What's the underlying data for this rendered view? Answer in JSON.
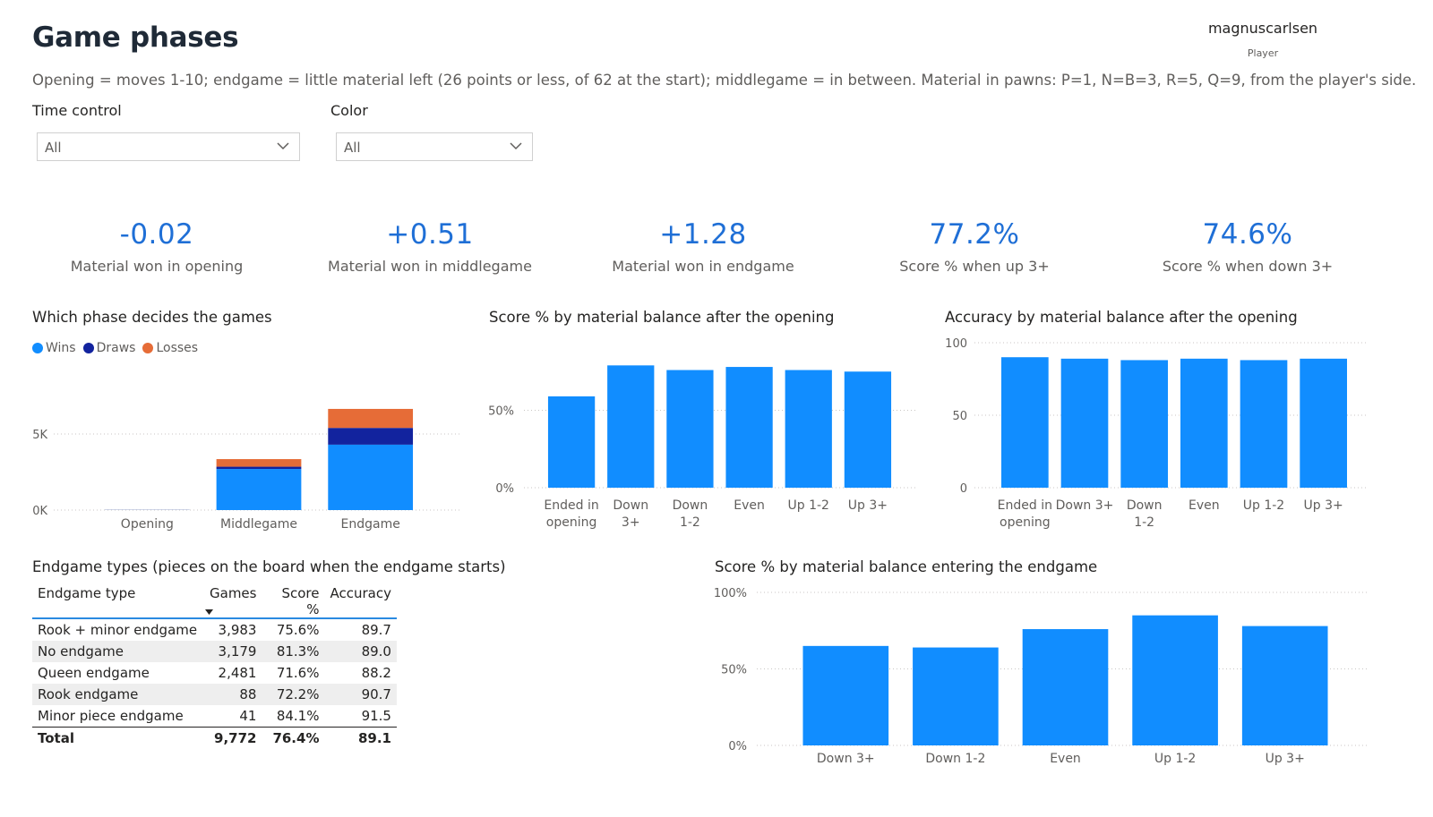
{
  "header": {
    "title": "Game phases",
    "player_name": "magnuscarlsen",
    "player_label": "Player",
    "subtitle": "Opening = moves 1-10; endgame = little material left (26 points or less, of 62 at the start); middlegame = in between. Material in pawns: P=1, N=B=3, R=5, Q=9, from the player's side."
  },
  "filters": {
    "time_control": {
      "label": "Time control",
      "value": "All"
    },
    "color": {
      "label": "Color",
      "value": "All"
    }
  },
  "kpis": [
    {
      "value": "-0.02",
      "label": "Material won in opening"
    },
    {
      "value": "+0.51",
      "label": "Material won in middlegame"
    },
    {
      "value": "+1.28",
      "label": "Material won in endgame"
    },
    {
      "value": "77.2%",
      "label": "Score % when up 3+"
    },
    {
      "value": "74.6%",
      "label": "Score % when down 3+"
    }
  ],
  "colors": {
    "wins": "#118dff",
    "draws": "#12239e",
    "losses": "#e66c37",
    "bar": "#118dff",
    "kpi": "#1f6fd6"
  },
  "phase_chart": {
    "title": "Which phase decides the games",
    "legend": [
      "Wins",
      "Draws",
      "Losses"
    ]
  },
  "endgame_table": {
    "title": "Endgame types (pieces on the board when the endgame starts)",
    "headers": [
      "Endgame type",
      "Games",
      "Score %",
      "Accuracy"
    ],
    "rows": [
      [
        "Rook + minor endgame",
        "3,983",
        "75.6%",
        "89.7"
      ],
      [
        "No endgame",
        "3,179",
        "81.3%",
        "89.0"
      ],
      [
        "Queen endgame",
        "2,481",
        "71.6%",
        "88.2"
      ],
      [
        "Rook endgame",
        "88",
        "72.2%",
        "90.7"
      ],
      [
        "Minor piece endgame",
        "41",
        "84.1%",
        "91.5"
      ]
    ],
    "total": [
      "Total",
      "9,772",
      "76.4%",
      "89.1"
    ]
  },
  "chart_data": [
    {
      "type": "bar",
      "stacked": true,
      "title": "Which phase decides the games",
      "categories": [
        "Opening",
        "Middlegame",
        "Endgame"
      ],
      "series": [
        {
          "name": "Wins",
          "values": [
            10,
            2700,
            4300
          ]
        },
        {
          "name": "Draws",
          "values": [
            5,
            150,
            1100
          ]
        },
        {
          "name": "Losses",
          "values": [
            5,
            500,
            1250
          ]
        }
      ],
      "y_ticks": [
        "0K",
        "5K"
      ],
      "y_tick_values": [
        0,
        5000
      ],
      "ylim": [
        0,
        10000
      ],
      "legend_position": "top-left",
      "grid": true
    },
    {
      "type": "bar",
      "title": "Score % by material balance after the opening",
      "categories": [
        [
          "Ended in",
          "opening"
        ],
        [
          "Down",
          "3+"
        ],
        [
          "Down",
          "1-2"
        ],
        [
          "Even"
        ],
        [
          "Up 1-2"
        ],
        [
          "Up 3+"
        ]
      ],
      "values": [
        59,
        79,
        76,
        78,
        76,
        75
      ],
      "y_ticks": [
        "0%",
        "50%"
      ],
      "y_tick_values": [
        0,
        50
      ],
      "ylim": [
        0,
        100
      ],
      "grid": true
    },
    {
      "type": "bar",
      "title": "Accuracy by material balance after the opening",
      "categories": [
        [
          "Ended in",
          "opening"
        ],
        [
          "Down 3+"
        ],
        [
          "Down",
          "1-2"
        ],
        [
          "Even"
        ],
        [
          "Up 1-2"
        ],
        [
          "Up 3+"
        ]
      ],
      "values": [
        90,
        89,
        88,
        89,
        88,
        89
      ],
      "y_ticks": [
        "0",
        "50",
        "100"
      ],
      "y_tick_values": [
        0,
        50,
        100
      ],
      "ylim": [
        0,
        100
      ],
      "grid": true
    },
    {
      "type": "bar",
      "title": "Score % by material balance entering the endgame",
      "categories": [
        [
          "Down 3+"
        ],
        [
          "Down 1-2"
        ],
        [
          "Even"
        ],
        [
          "Up 1-2"
        ],
        [
          "Up 3+"
        ]
      ],
      "values": [
        65,
        64,
        76,
        85,
        78
      ],
      "y_ticks": [
        "0%",
        "50%",
        "100%"
      ],
      "y_tick_values": [
        0,
        50,
        100
      ],
      "ylim": [
        0,
        100
      ],
      "grid": true
    }
  ]
}
